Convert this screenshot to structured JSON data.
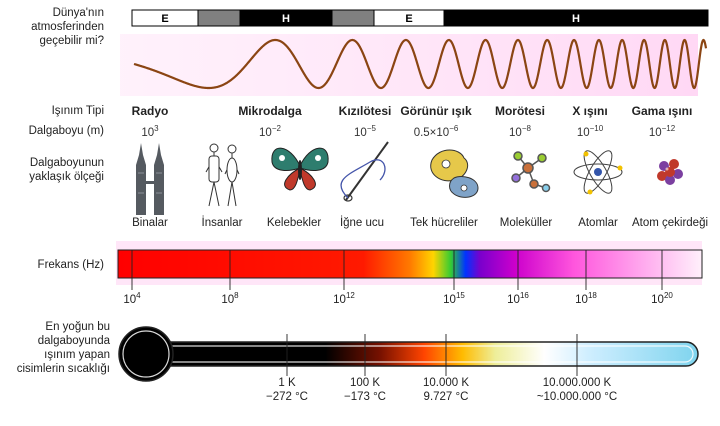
{
  "labels": {
    "atmosphere": [
      "Dünya'nın",
      "atmosferinden",
      "geçebilir mi?"
    ],
    "radiation_type": "Işınım Tipi",
    "wavelength": "Dalgaboyu (m)",
    "scale": [
      "Dalgaboyunun",
      "yaklaşık ölçeği"
    ],
    "frequency": "Frekans (Hz)",
    "temperature": [
      "En yoğun bu",
      "dalgaboyunda",
      "ışınım yapan",
      "cisimlerin sıcaklığı"
    ]
  },
  "atmosphere_bar": [
    {
      "label": "E",
      "fill": "#ffffff"
    },
    {
      "label": "",
      "fill": "#808080"
    },
    {
      "label": "H",
      "fill": "#000000"
    },
    {
      "label": "",
      "fill": "#808080"
    },
    {
      "label": "E",
      "fill": "#ffffff"
    },
    {
      "label": "H",
      "fill": "#000000"
    }
  ],
  "radiation_types": [
    {
      "name": "Radyo",
      "wl_base": "10",
      "wl_exp": "3"
    },
    {
      "name": "Mikrodalga",
      "wl_base": "10",
      "wl_exp": "−2"
    },
    {
      "name": "Kızılötesi",
      "wl_base": "10",
      "wl_exp": "−5"
    },
    {
      "name": "Görünür ışık",
      "wl_base": "0.5×10",
      "wl_exp": "−6"
    },
    {
      "name": "Morötesi",
      "wl_base": "10",
      "wl_exp": "−8"
    },
    {
      "name": "X ışını",
      "wl_base": "10",
      "wl_exp": "−10"
    },
    {
      "name": "Gama ışını",
      "wl_base": "10",
      "wl_exp": "−12"
    }
  ],
  "scale_objects": [
    {
      "name": "Binalar",
      "icon": "buildings-icon"
    },
    {
      "name": "İnsanlar",
      "icon": "humans-icon"
    },
    {
      "name": "Kelebekler",
      "icon": "butterfly-icon"
    },
    {
      "name": "İğne ucu",
      "icon": "needle-icon"
    },
    {
      "name": "Tek hücreliler",
      "icon": "protozoa-icon"
    },
    {
      "name": "Moleküller",
      "icon": "molecule-icon"
    },
    {
      "name": "Atomlar",
      "icon": "atom-icon"
    },
    {
      "name": "Atom çekirdeği",
      "icon": "nucleus-icon"
    }
  ],
  "frequency_ticks": [
    {
      "base": "10",
      "exp": "4"
    },
    {
      "base": "10",
      "exp": "8"
    },
    {
      "base": "10",
      "exp": "12"
    },
    {
      "base": "10",
      "exp": "15"
    },
    {
      "base": "10",
      "exp": "16"
    },
    {
      "base": "10",
      "exp": "18"
    },
    {
      "base": "10",
      "exp": "20"
    }
  ],
  "temperature_ticks": [
    {
      "kelvin": "1 K",
      "celsius": "−272 °C"
    },
    {
      "kelvin": "100 K",
      "celsius": "−173 °C"
    },
    {
      "kelvin": "10.000 K",
      "celsius": "9.727 °C"
    },
    {
      "kelvin": "10.000.000 K",
      "celsius": "~10.000.000 °C"
    }
  ]
}
